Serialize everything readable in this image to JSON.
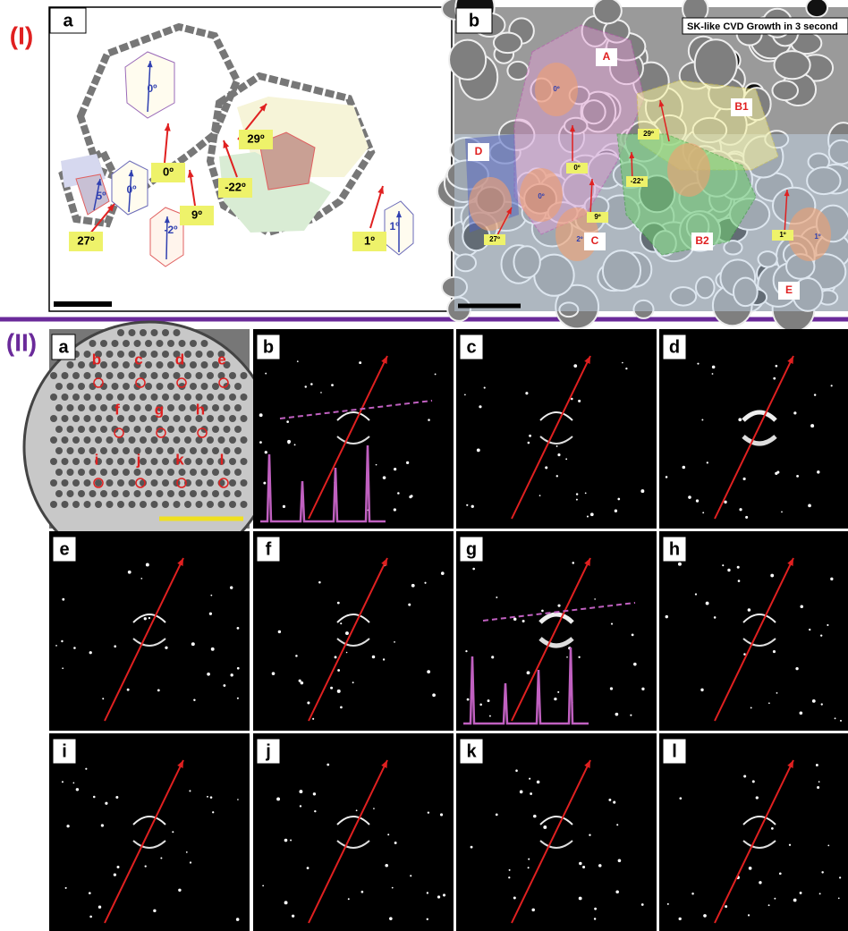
{
  "part_labels": [
    "(I)",
    "(II)"
  ],
  "part1": {
    "panel_a": {
      "label": "a",
      "angle_labels": [
        "0º",
        "0º",
        "29º",
        "-22º",
        "9º",
        "-2º",
        "27º",
        "1º",
        "1º",
        "0º",
        "5º"
      ]
    },
    "panel_b": {
      "label": "b",
      "banner": "SK-like CVD Growth in 3 second",
      "regions": [
        "A",
        "B1",
        "D",
        "C",
        "B2",
        "E"
      ],
      "angle_labels": [
        "0º",
        "29º",
        "0º",
        "-22º",
        "0º",
        "9º",
        "27º",
        "2º",
        "1º",
        "1º"
      ]
    }
  },
  "part2": {
    "overview": {
      "label": "a",
      "points": [
        "b",
        "c",
        "d",
        "e",
        "f",
        "g",
        "h",
        "i",
        "j",
        "k",
        "l"
      ]
    },
    "patterns": [
      {
        "label": "b"
      },
      {
        "label": "c"
      },
      {
        "label": "d"
      },
      {
        "label": "e"
      },
      {
        "label": "f"
      },
      {
        "label": "g"
      },
      {
        "label": "h"
      },
      {
        "label": "i"
      },
      {
        "label": "j"
      },
      {
        "label": "k"
      },
      {
        "label": "l"
      }
    ]
  }
}
